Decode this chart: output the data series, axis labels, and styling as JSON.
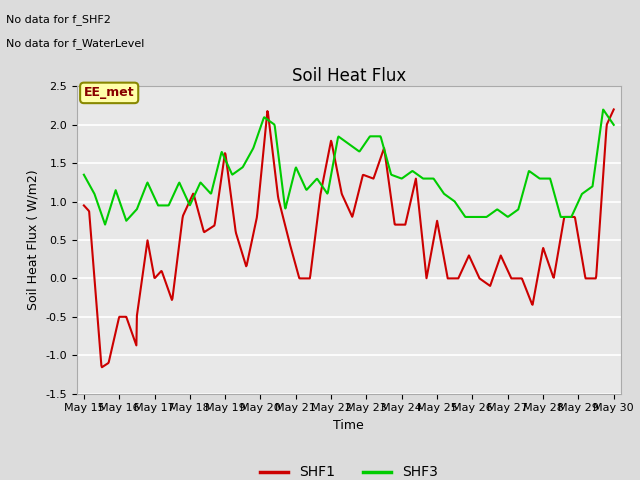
{
  "title": "Soil Heat Flux",
  "xlabel": "Time",
  "ylabel": "Soil Heat Flux ( W/m2)",
  "ylim": [
    -1.5,
    2.5
  ],
  "bg_color": "#dcdcdc",
  "plot_bg_color": "#e8e8e8",
  "grid_color": "white",
  "notes": [
    "No data for f_SHF2",
    "No data for f_WaterLevel"
  ],
  "label_box": "EE_met",
  "xtick_labels": [
    "May 15",
    "May 16",
    "May 17",
    "May 18",
    "May 19",
    "May 20",
    "May 21",
    "May 22",
    "May 23",
    "May 24",
    "May 25",
    "May 26",
    "May 27",
    "May 28",
    "May 29",
    "May 30"
  ],
  "shf1_color": "#cc0000",
  "shf3_color": "#00cc00",
  "title_fontsize": 12,
  "axis_label_fontsize": 9,
  "tick_fontsize": 8
}
